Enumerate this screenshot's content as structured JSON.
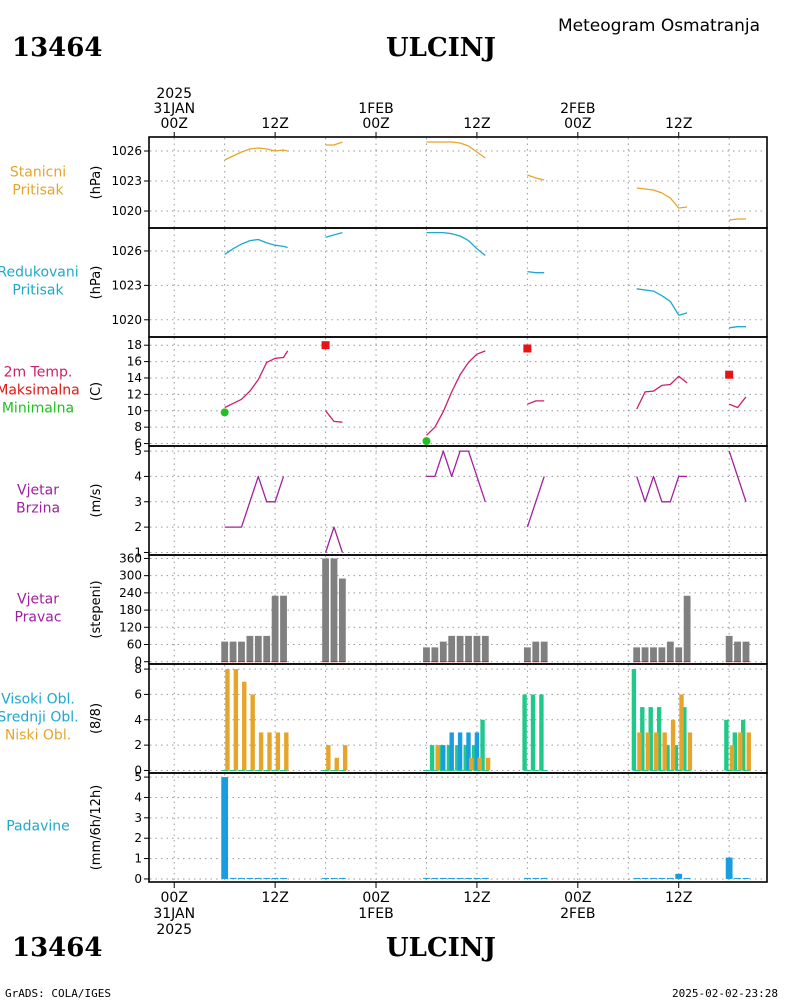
{
  "header": {
    "station_id": "13464",
    "station_name": "ULCINJ",
    "meteogram_title": "Meteogram Osmatranja"
  },
  "footer": {
    "credit": "GrADS: COLA/IGES",
    "timestamp": "2025-02-02-23:28"
  },
  "time_axis": {
    "top_labels": [
      {
        "t": 0,
        "lines": [
          "2025",
          "31JAN",
          "00Z"
        ]
      },
      {
        "t": 12,
        "lines": [
          "12Z"
        ]
      },
      {
        "t": 24,
        "lines": [
          "1FEB",
          "00Z"
        ]
      },
      {
        "t": 36,
        "lines": [
          "12Z"
        ]
      },
      {
        "t": 48,
        "lines": [
          "2FEB",
          "00Z"
        ]
      },
      {
        "t": 60,
        "lines": [
          "12Z"
        ]
      }
    ],
    "bottom_labels": [
      {
        "t": 0,
        "lines": [
          "00Z",
          "31JAN",
          "2025"
        ]
      },
      {
        "t": 12,
        "lines": [
          "12Z"
        ]
      },
      {
        "t": 24,
        "lines": [
          "00Z",
          "1FEB"
        ]
      },
      {
        "t": 36,
        "lines": [
          "12Z"
        ]
      },
      {
        "t": 48,
        "lines": [
          "00Z",
          "2FEB"
        ]
      },
      {
        "t": 60,
        "lines": [
          "12Z"
        ]
      }
    ],
    "range_hours": [
      -3,
      70.5
    ]
  },
  "colors": {
    "station_pressure": "#e6a52a",
    "reduced_pressure": "#1fa8cc",
    "temp_line": "#cc1f6b",
    "tmax": "#e61414",
    "tmin": "#20c020",
    "wind": "#a020a0",
    "bar_gray": "#808080",
    "cloud_high": "#20c88a",
    "cloud_mid": "#1a9ce0",
    "cloud_low": "#e6a52a",
    "precip": "#1a9ce0",
    "grid": "#9a9a9a",
    "label_orange": "#e6a52a",
    "label_cyan": "#1fa8cc",
    "label_purple": "#a020a0",
    "label_red": "#e61414",
    "label_green": "#20c020"
  },
  "chart_data": [
    {
      "type": "line",
      "id": "station_pressure",
      "panel_labels": [
        "Stanicni",
        "Pritisak"
      ],
      "label_color": "orange",
      "ylabel": "(hPa)",
      "ylim": [
        1018.3,
        1027.4
      ],
      "yticks": [
        1020,
        1023,
        1026
      ],
      "series": [
        {
          "color": "station_pressure",
          "segments": [
            [
              [
                6,
                1025.1
              ],
              [
                7,
                1025.5
              ],
              [
                8,
                1025.9
              ],
              [
                9,
                1026.2
              ],
              [
                10,
                1026.3
              ],
              [
                11,
                1026.2
              ],
              [
                12,
                1026.0
              ],
              [
                13,
                1026.1
              ],
              [
                13.5,
                1026.0
              ]
            ],
            [
              [
                18,
                1026.6
              ],
              [
                19,
                1026.6
              ],
              [
                20,
                1026.9
              ]
            ],
            [
              [
                30,
                1026.9
              ],
              [
                31,
                1026.9
              ],
              [
                32,
                1026.9
              ],
              [
                33,
                1026.9
              ],
              [
                34,
                1026.8
              ],
              [
                35,
                1026.5
              ],
              [
                36,
                1025.9
              ],
              [
                37,
                1025.3
              ]
            ],
            [
              [
                42,
                1023.6
              ],
              [
                43,
                1023.3
              ],
              [
                44,
                1023.1
              ]
            ],
            [
              [
                55,
                1022.3
              ],
              [
                56,
                1022.2
              ],
              [
                57,
                1022.1
              ],
              [
                58,
                1021.8
              ],
              [
                59,
                1021.3
              ],
              [
                60,
                1020.3
              ],
              [
                61,
                1020.4
              ]
            ],
            [
              [
                66,
                1019.1
              ],
              [
                67,
                1019.2
              ],
              [
                68,
                1019.2
              ]
            ]
          ]
        }
      ]
    },
    {
      "type": "line",
      "id": "reduced_pressure",
      "panel_labels": [
        "Redukovani",
        "Pritisak"
      ],
      "label_color": "cyan",
      "ylabel": "(hPa)",
      "ylim": [
        1018.5,
        1028.0
      ],
      "yticks": [
        1020,
        1023,
        1026
      ],
      "series": [
        {
          "color": "reduced_pressure",
          "segments": [
            [
              [
                6,
                1025.7
              ],
              [
                7,
                1026.2
              ],
              [
                8,
                1026.6
              ],
              [
                9,
                1026.9
              ],
              [
                10,
                1027.0
              ],
              [
                11,
                1026.7
              ],
              [
                12,
                1026.5
              ],
              [
                13,
                1026.4
              ],
              [
                13.5,
                1026.3
              ]
            ],
            [
              [
                18,
                1027.2
              ],
              [
                19,
                1027.4
              ],
              [
                20,
                1027.6
              ]
            ],
            [
              [
                30,
                1027.6
              ],
              [
                31,
                1027.6
              ],
              [
                32,
                1027.6
              ],
              [
                33,
                1027.5
              ],
              [
                34,
                1027.3
              ],
              [
                35,
                1026.9
              ],
              [
                36,
                1026.2
              ],
              [
                37,
                1025.6
              ]
            ],
            [
              [
                42,
                1024.2
              ],
              [
                43,
                1024.1
              ],
              [
                44,
                1024.1
              ]
            ],
            [
              [
                55,
                1022.7
              ],
              [
                56,
                1022.6
              ],
              [
                57,
                1022.5
              ],
              [
                58,
                1022.1
              ],
              [
                59,
                1021.6
              ],
              [
                60,
                1020.4
              ],
              [
                61,
                1020.6
              ]
            ],
            [
              [
                66,
                1019.3
              ],
              [
                67,
                1019.4
              ],
              [
                68,
                1019.4
              ]
            ]
          ]
        }
      ]
    },
    {
      "type": "line",
      "id": "temperature",
      "panel_labels": [
        "2m Temp.",
        "Maksimalna",
        "Minimalna"
      ],
      "label_colors": [
        "temp_line",
        "tmax",
        "tmin"
      ],
      "ylabel": "(C)",
      "ylim": [
        5.7,
        19.0
      ],
      "yticks": [
        6,
        8,
        10,
        12,
        14,
        16,
        18
      ],
      "series": [
        {
          "color": "temp_line",
          "segments": [
            [
              [
                6,
                10.4
              ],
              [
                7,
                10.9
              ],
              [
                8,
                11.4
              ],
              [
                9,
                12.4
              ],
              [
                10,
                13.8
              ],
              [
                11,
                15.9
              ],
              [
                12,
                16.4
              ],
              [
                13,
                16.5
              ],
              [
                13.5,
                17.3
              ]
            ],
            [
              [
                18,
                10.0
              ],
              [
                19,
                8.7
              ],
              [
                20,
                8.6
              ]
            ],
            [
              [
                30,
                7.0
              ],
              [
                31,
                8.0
              ],
              [
                32,
                9.9
              ],
              [
                33,
                12.3
              ],
              [
                34,
                14.4
              ],
              [
                35,
                15.9
              ],
              [
                36,
                16.9
              ],
              [
                37,
                17.3
              ]
            ],
            [
              [
                42,
                10.8
              ],
              [
                43,
                11.2
              ],
              [
                44,
                11.2
              ]
            ],
            [
              [
                55,
                10.2
              ],
              [
                56,
                12.3
              ],
              [
                57,
                12.4
              ],
              [
                58,
                13.1
              ],
              [
                59,
                13.2
              ],
              [
                60,
                14.2
              ],
              [
                61,
                13.4
              ]
            ],
            [
              [
                66,
                10.8
              ],
              [
                67,
                10.4
              ],
              [
                68,
                11.7
              ]
            ]
          ]
        }
      ],
      "markers": [
        {
          "name": "Maksimalna",
          "shape": "square",
          "color": "tmax",
          "points": [
            [
              18,
              18.0
            ],
            [
              42,
              17.6
            ],
            [
              66,
              14.4
            ]
          ]
        },
        {
          "name": "Minimalna",
          "shape": "circle",
          "color": "tmin",
          "points": [
            [
              6,
              9.8
            ],
            [
              30,
              6.3
            ]
          ]
        }
      ]
    },
    {
      "type": "line",
      "id": "wind_speed",
      "panel_labels": [
        "Vjetar",
        "Brzina"
      ],
      "label_color": "purple",
      "ylabel": "(m/s)",
      "ylim": [
        0.9,
        5.2
      ],
      "yticks": [
        1,
        2,
        3,
        4,
        5
      ],
      "series": [
        {
          "color": "wind",
          "segments": [
            [
              [
                6,
                2
              ],
              [
                7,
                2
              ],
              [
                8,
                2
              ],
              [
                9,
                3
              ],
              [
                10,
                4
              ],
              [
                11,
                3
              ],
              [
                12,
                3
              ],
              [
                13,
                4
              ]
            ],
            [
              [
                18,
                1
              ],
              [
                19,
                2
              ],
              [
                20,
                1
              ]
            ],
            [
              [
                30,
                4
              ],
              [
                31,
                4
              ],
              [
                32,
                5
              ],
              [
                33,
                4
              ],
              [
                34,
                5
              ],
              [
                35,
                5
              ],
              [
                36,
                4
              ],
              [
                37,
                3
              ]
            ],
            [
              [
                42,
                2
              ],
              [
                43,
                3
              ],
              [
                44,
                4
              ]
            ],
            [
              [
                55,
                4
              ],
              [
                56,
                3
              ],
              [
                57,
                4
              ],
              [
                58,
                3
              ],
              [
                59,
                3
              ],
              [
                60,
                4
              ],
              [
                61,
                4
              ]
            ],
            [
              [
                66,
                5
              ],
              [
                67,
                4
              ],
              [
                68,
                3
              ]
            ]
          ]
        }
      ]
    },
    {
      "type": "bar",
      "id": "wind_direction",
      "panel_labels": [
        "Vjetar",
        "Pravac"
      ],
      "label_color": "purple",
      "ylabel": "(stepeni)",
      "ylim": [
        -8,
        372
      ],
      "yticks": [
        0,
        60,
        120,
        180,
        240,
        300,
        360
      ],
      "bar_color": "bar_gray",
      "times": [
        6,
        7,
        8,
        9,
        10,
        11,
        12,
        13,
        18,
        19,
        20,
        30,
        31,
        32,
        33,
        34,
        35,
        36,
        37,
        42,
        43,
        44,
        55,
        56,
        57,
        58,
        59,
        60,
        61,
        66,
        67,
        68
      ],
      "values": [
        70,
        70,
        70,
        90,
        90,
        90,
        230,
        230,
        360,
        360,
        290,
        50,
        50,
        70,
        90,
        90,
        90,
        90,
        90,
        50,
        70,
        70,
        50,
        50,
        50,
        50,
        70,
        50,
        230,
        90,
        70,
        70
      ]
    },
    {
      "type": "bar",
      "id": "clouds",
      "panel_labels": [
        "Visoki Obl.",
        "Srednji Obl.",
        "Niski Obl."
      ],
      "label_colors": [
        "label_cyan",
        "label_cyan",
        "label_orange"
      ],
      "ylabel": "(8/8)",
      "ylim": [
        -0.2,
        8.4
      ],
      "yticks": [
        0,
        2,
        4,
        6,
        8
      ],
      "times": [
        6,
        7,
        8,
        9,
        10,
        11,
        12,
        13,
        18,
        19,
        20,
        30,
        31,
        32,
        33,
        34,
        35,
        36,
        37,
        42,
        43,
        44,
        55,
        56,
        57,
        58,
        59,
        60,
        61,
        66,
        67,
        68
      ],
      "series": [
        {
          "name": "Visoki Obl.",
          "color": "cloud_high",
          "offset": -0.33,
          "values": [
            0,
            0,
            0,
            0,
            0,
            0,
            0,
            0,
            0,
            0,
            0,
            0,
            2,
            2,
            2,
            2,
            2,
            2,
            4,
            6,
            6,
            6,
            8,
            5,
            5,
            5,
            2,
            2,
            5,
            4,
            3,
            4
          ]
        },
        {
          "name": "Srednji Obl.",
          "color": "cloud_mid",
          "offset": 0,
          "values": [
            0,
            0,
            0,
            0,
            0,
            0,
            0,
            0,
            0,
            0,
            0,
            0,
            0,
            2,
            3,
            3,
            3,
            3,
            0,
            0,
            0,
            0,
            0,
            0,
            0,
            0,
            0,
            0,
            0,
            0,
            0,
            0
          ]
        },
        {
          "name": "Niski Obl.",
          "color": "cloud_low",
          "offset": 0.33,
          "values": [
            8,
            8,
            7,
            6,
            3,
            3,
            3,
            3,
            2,
            1,
            2,
            0,
            2,
            0,
            0,
            0,
            1,
            1,
            1,
            0,
            0,
            0,
            3,
            3,
            3,
            3,
            4,
            6,
            3,
            2,
            3,
            3
          ]
        }
      ]
    },
    {
      "type": "bar",
      "id": "precipitation",
      "panel_labels": [
        "Padavine"
      ],
      "label_color": "cyan",
      "ylabel": "(mm/6h/12h)",
      "ylim": [
        -0.15,
        5.2
      ],
      "yticks": [
        0,
        1,
        2,
        3,
        4,
        5
      ],
      "bar_color": "precip",
      "times": [
        6,
        7,
        8,
        9,
        10,
        11,
        12,
        13,
        18,
        19,
        20,
        30,
        31,
        32,
        33,
        34,
        35,
        36,
        37,
        42,
        43,
        44,
        55,
        56,
        57,
        58,
        59,
        60,
        61,
        66,
        67,
        68
      ],
      "values": [
        5.0,
        0.05,
        0.05,
        0.05,
        0.05,
        0.05,
        0.05,
        0.05,
        0.05,
        0.05,
        0.05,
        0.05,
        0.05,
        0.05,
        0.05,
        0.05,
        0.05,
        0.05,
        0.05,
        0.05,
        0.05,
        0.05,
        0.05,
        0.05,
        0.05,
        0.05,
        0.05,
        0.25,
        0.05,
        1.05,
        0.05,
        0.05
      ]
    }
  ]
}
